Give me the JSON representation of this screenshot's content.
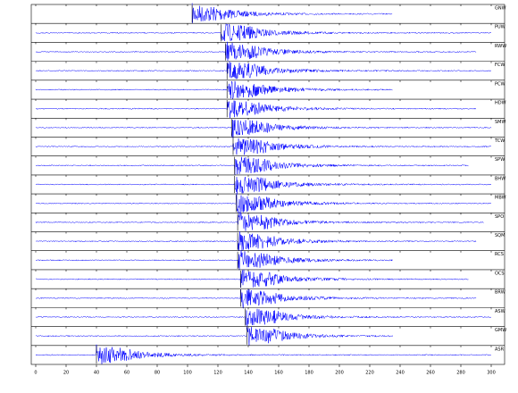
{
  "chart_data": {
    "type": "seismogram",
    "color": "#0000ff",
    "xlim": [
      0,
      300
    ],
    "xticks": [
      0,
      20,
      40,
      60,
      80,
      100,
      120,
      140,
      160,
      180,
      200,
      220,
      240,
      260,
      280,
      300
    ],
    "traces": [
      {
        "name": "GNW",
        "start": 103,
        "end": 235,
        "onset": 103
      },
      {
        "name": "PUW",
        "start": 0,
        "end": 300,
        "onset": 122
      },
      {
        "name": "RWW",
        "start": 0,
        "end": 290,
        "onset": 125
      },
      {
        "name": "FCW",
        "start": 0,
        "end": 300,
        "onset": 126
      },
      {
        "name": "PCW",
        "start": 0,
        "end": 235,
        "onset": 126
      },
      {
        "name": "HDW",
        "start": 0,
        "end": 290,
        "onset": 126
      },
      {
        "name": "SMW",
        "start": 0,
        "end": 300,
        "onset": 129
      },
      {
        "name": "TCW",
        "start": 0,
        "end": 300,
        "onset": 130
      },
      {
        "name": "SPW",
        "start": 0,
        "end": 285,
        "onset": 131
      },
      {
        "name": "BHW",
        "start": 0,
        "end": 300,
        "onset": 131
      },
      {
        "name": "MBW",
        "start": 0,
        "end": 300,
        "onset": 132
      },
      {
        "name": "SPO",
        "start": 0,
        "end": 295,
        "onset": 133
      },
      {
        "name": "SQM",
        "start": 0,
        "end": 290,
        "onset": 133
      },
      {
        "name": "RCS",
        "start": 0,
        "end": 235,
        "onset": 133
      },
      {
        "name": "OCS",
        "start": 0,
        "end": 285,
        "onset": 135
      },
      {
        "name": "BRW",
        "start": 0,
        "end": 290,
        "onset": 135
      },
      {
        "name": "ASW",
        "start": 0,
        "end": 300,
        "onset": 138
      },
      {
        "name": "GMW",
        "start": 0,
        "end": 235,
        "onset": 139
      },
      {
        "name": "ASR",
        "start": 0,
        "end": 300,
        "onset": 40
      }
    ]
  }
}
